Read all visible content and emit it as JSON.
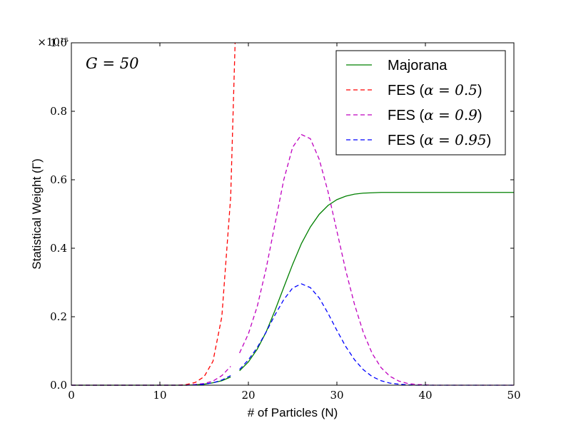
{
  "chart_data": {
    "type": "line",
    "title": "",
    "xlabel": "# of Particles (N)",
    "ylabel": "Statistical Weight (Γ)",
    "xlim": [
      0,
      50
    ],
    "ylim": [
      0,
      1.0
    ],
    "x_ticks": [
      0,
      10,
      20,
      30,
      40,
      50
    ],
    "x_tick_labels": [
      "0",
      "10",
      "20",
      "30",
      "40",
      "50"
    ],
    "y_ticks": [
      0,
      0.2,
      0.4,
      0.6,
      0.8,
      1.0
    ],
    "y_tick_labels": [
      "0.0",
      "0.2",
      "0.4",
      "0.6",
      "0.8",
      "1.0"
    ],
    "y_scale_label": "×10¹⁵",
    "annotation": "G = 50",
    "grid": false,
    "legend_position": "top-right",
    "x": [
      0,
      1,
      2,
      3,
      4,
      5,
      6,
      7,
      8,
      9,
      10,
      11,
      12,
      13,
      14,
      15,
      16,
      17,
      18,
      18.5,
      19,
      20,
      21,
      22,
      23,
      24,
      25,
      26,
      27,
      28,
      29,
      30,
      31,
      32,
      33,
      34,
      35,
      36,
      37,
      38,
      39,
      40,
      41,
      42,
      43,
      44,
      45,
      46,
      47,
      48,
      49,
      50
    ],
    "series": [
      {
        "name": "Majorana",
        "legend_label": "Majorana",
        "color": "#008000",
        "style": "solid",
        "values": [
          0,
          0,
          0,
          0,
          0,
          0,
          0,
          0,
          0,
          0,
          0,
          0,
          0,
          0,
          0.001,
          0.003,
          0.007,
          0.013,
          0.024,
          null,
          0.042,
          0.068,
          0.105,
          0.155,
          0.218,
          0.286,
          0.353,
          0.414,
          0.462,
          0.499,
          0.525,
          0.542,
          0.552,
          0.558,
          0.561,
          0.562,
          0.563,
          0.563,
          0.563,
          0.563,
          0.563,
          0.563,
          0.563,
          0.563,
          0.563,
          0.563,
          0.563,
          0.563,
          0.563,
          0.563,
          0.563,
          0.563
        ]
      },
      {
        "name": "FES (alpha = 0.5)",
        "legend_label": "FES (",
        "legend_math": "α = 0.5",
        "color": "#ff0000",
        "style": "dashed",
        "values": [
          0,
          0,
          0,
          0,
          0,
          0,
          0,
          0,
          0,
          0,
          0,
          0,
          0,
          0.002,
          0.008,
          0.025,
          0.07,
          0.2,
          0.55,
          1.0,
          null,
          null,
          null,
          null,
          null,
          null,
          null,
          null,
          null,
          null,
          null,
          null,
          null,
          null,
          null,
          null,
          null,
          null,
          null,
          null,
          null,
          null,
          null,
          null,
          null,
          null,
          null,
          null,
          null,
          null,
          null,
          null
        ]
      },
      {
        "name": "FES (alpha = 0.9)",
        "legend_label": "FES (",
        "legend_math": "α = 0.9",
        "color": "#bf00bf",
        "style": "dashed",
        "values": [
          0,
          0,
          0,
          0,
          0,
          0,
          0,
          0,
          0,
          0,
          0,
          0,
          0,
          0,
          0.002,
          0.005,
          0.012,
          0.028,
          0.055,
          null,
          0.094,
          0.15,
          0.23,
          0.34,
          0.47,
          0.6,
          0.695,
          0.732,
          0.72,
          0.66,
          0.565,
          0.45,
          0.335,
          0.235,
          0.153,
          0.092,
          0.051,
          0.026,
          0.012,
          0.005,
          0.002,
          0.001,
          0,
          0,
          0,
          0,
          0,
          0,
          0,
          0,
          0,
          0
        ]
      },
      {
        "name": "FES (alpha = 0.95)",
        "legend_label": "FES (",
        "legend_math": "α = 0.95",
        "color": "#0000ff",
        "style": "dashed",
        "values": [
          0,
          0,
          0,
          0,
          0,
          0,
          0,
          0,
          0,
          0,
          0,
          0,
          0,
          0,
          0.001,
          0.003,
          0.007,
          0.015,
          0.028,
          null,
          0.046,
          0.074,
          0.11,
          0.155,
          0.205,
          0.25,
          0.284,
          0.296,
          0.285,
          0.255,
          0.21,
          0.16,
          0.113,
          0.074,
          0.045,
          0.025,
          0.013,
          0.006,
          0.003,
          0.001,
          0,
          0,
          0,
          0,
          0,
          0,
          0,
          0,
          0,
          0,
          0,
          0
        ]
      }
    ]
  }
}
